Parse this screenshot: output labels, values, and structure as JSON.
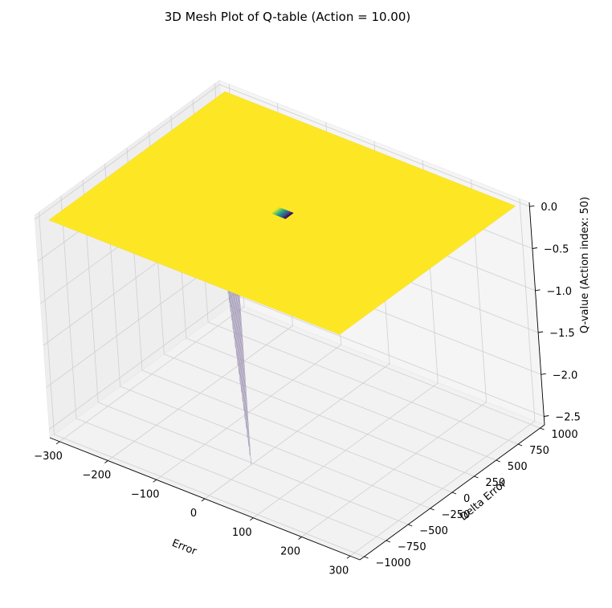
{
  "chart_data": {
    "type": "surface3d",
    "title": "3D Mesh Plot of Q-table (Action = 10.00)",
    "xlabel": "Error",
    "ylabel": "Delta Error",
    "zlabel": "Q-value (Action index: 50)",
    "xlim": [
      -320,
      320
    ],
    "ylim": [
      -1050,
      1050
    ],
    "zlim": [
      -2.6,
      0.05
    ],
    "x_ticks": [
      "−300",
      "−200",
      "−100",
      "0",
      "100",
      "200",
      "300"
    ],
    "y_ticks": [
      "−1000",
      "−750",
      "−500",
      "−250",
      "0",
      "250",
      "500",
      "750",
      "1000"
    ],
    "z_ticks": [
      "−2.5",
      "−2.0",
      "−1.5",
      "−1.0",
      "−0.5",
      "0.0"
    ],
    "x_tick_values": [
      -300,
      -200,
      -100,
      0,
      100,
      200,
      300
    ],
    "y_tick_values": [
      -1000,
      -750,
      -500,
      -250,
      0,
      250,
      500,
      750,
      1000
    ],
    "z_tick_values": [
      -2.5,
      -2.0,
      -1.5,
      -1.0,
      -0.5,
      0.0
    ],
    "surface": {
      "x_range": [
        -300,
        300
      ],
      "y_range": [
        -1000,
        1000
      ],
      "baseline_z": 0.0,
      "colormap": "viridis",
      "dip": {
        "x_range": [
          -15,
          15
        ],
        "y_range": [
          -1000,
          1000
        ],
        "min_z": -2.5,
        "profile": "linear-toward-positive-error"
      }
    },
    "grid": true,
    "colors": {
      "surface_high": "#fde725",
      "surface_low": "#440154",
      "pane": "#f2f2f2",
      "grid": "#cfcfcf"
    }
  }
}
